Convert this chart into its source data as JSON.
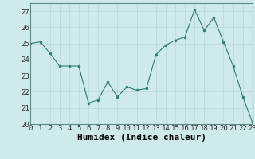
{
  "x": [
    0,
    1,
    2,
    3,
    4,
    5,
    6,
    7,
    8,
    9,
    10,
    11,
    12,
    13,
    14,
    15,
    16,
    17,
    18,
    19,
    20,
    21,
    22,
    23
  ],
  "y": [
    25.0,
    25.1,
    24.4,
    23.6,
    23.6,
    23.6,
    21.3,
    21.5,
    22.6,
    21.7,
    22.3,
    22.1,
    22.2,
    24.3,
    24.9,
    25.2,
    25.4,
    27.1,
    25.8,
    26.6,
    25.1,
    23.6,
    21.7,
    20.1
  ],
  "line_color": "#2e7d6e",
  "marker_color": "#2e7d6e",
  "bg_color": "#ceeaea",
  "grid_color": "#b8d8d8",
  "xlabel": "Humidex (Indice chaleur)",
  "xlim": [
    0,
    23
  ],
  "ylim": [
    20,
    27.5
  ],
  "yticks": [
    20,
    21,
    22,
    23,
    24,
    25,
    26,
    27
  ],
  "xticks": [
    0,
    1,
    2,
    3,
    4,
    5,
    6,
    7,
    8,
    9,
    10,
    11,
    12,
    13,
    14,
    15,
    16,
    17,
    18,
    19,
    20,
    21,
    22,
    23
  ],
  "tick_fontsize": 6.5,
  "xlabel_fontsize": 8,
  "spine_color": "#5a8a8a"
}
